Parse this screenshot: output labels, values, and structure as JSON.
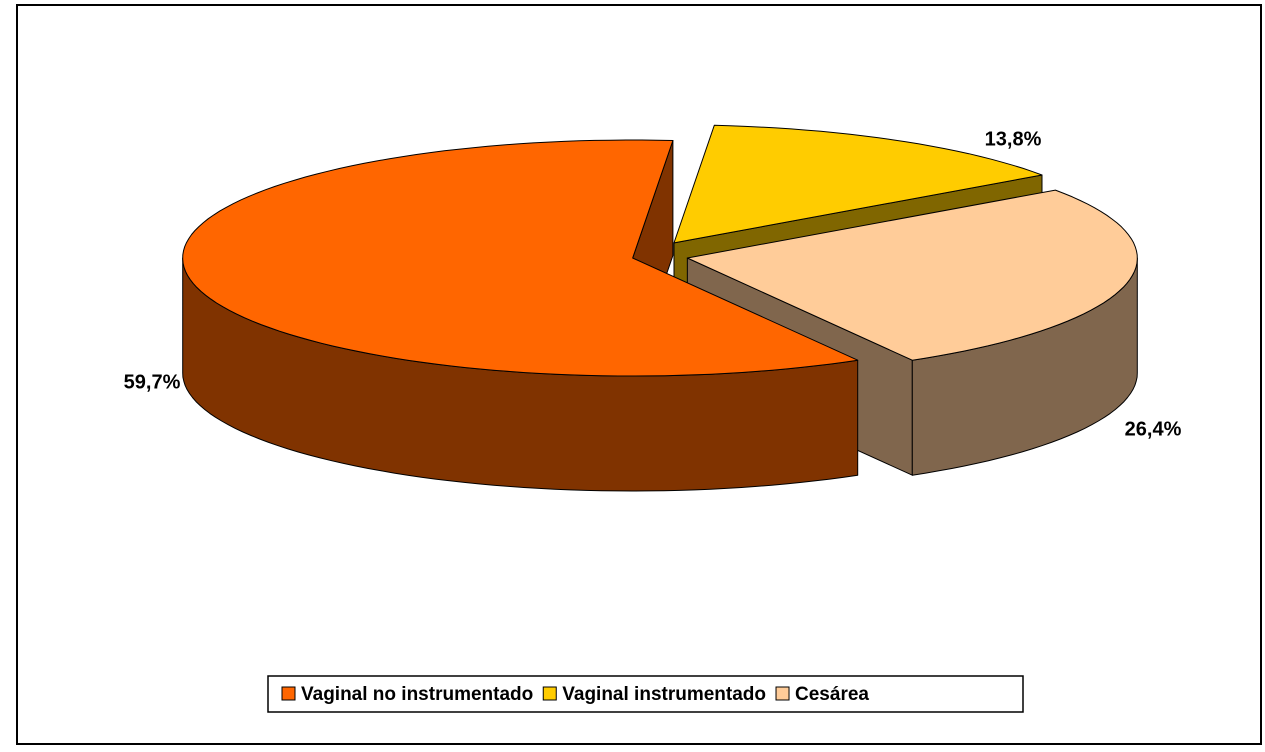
{
  "chart_data": {
    "type": "pie",
    "categories": [
      "Vaginal no instrumentado",
      "Vaginal instrumentado",
      "Cesárea"
    ],
    "values": [
      59.7,
      13.8,
      26.4
    ],
    "value_labels": [
      "59,7%",
      "13,8%",
      "26,4%"
    ],
    "colors": [
      "#FF6600",
      "#FFCC00",
      "#FFCC99"
    ]
  }
}
